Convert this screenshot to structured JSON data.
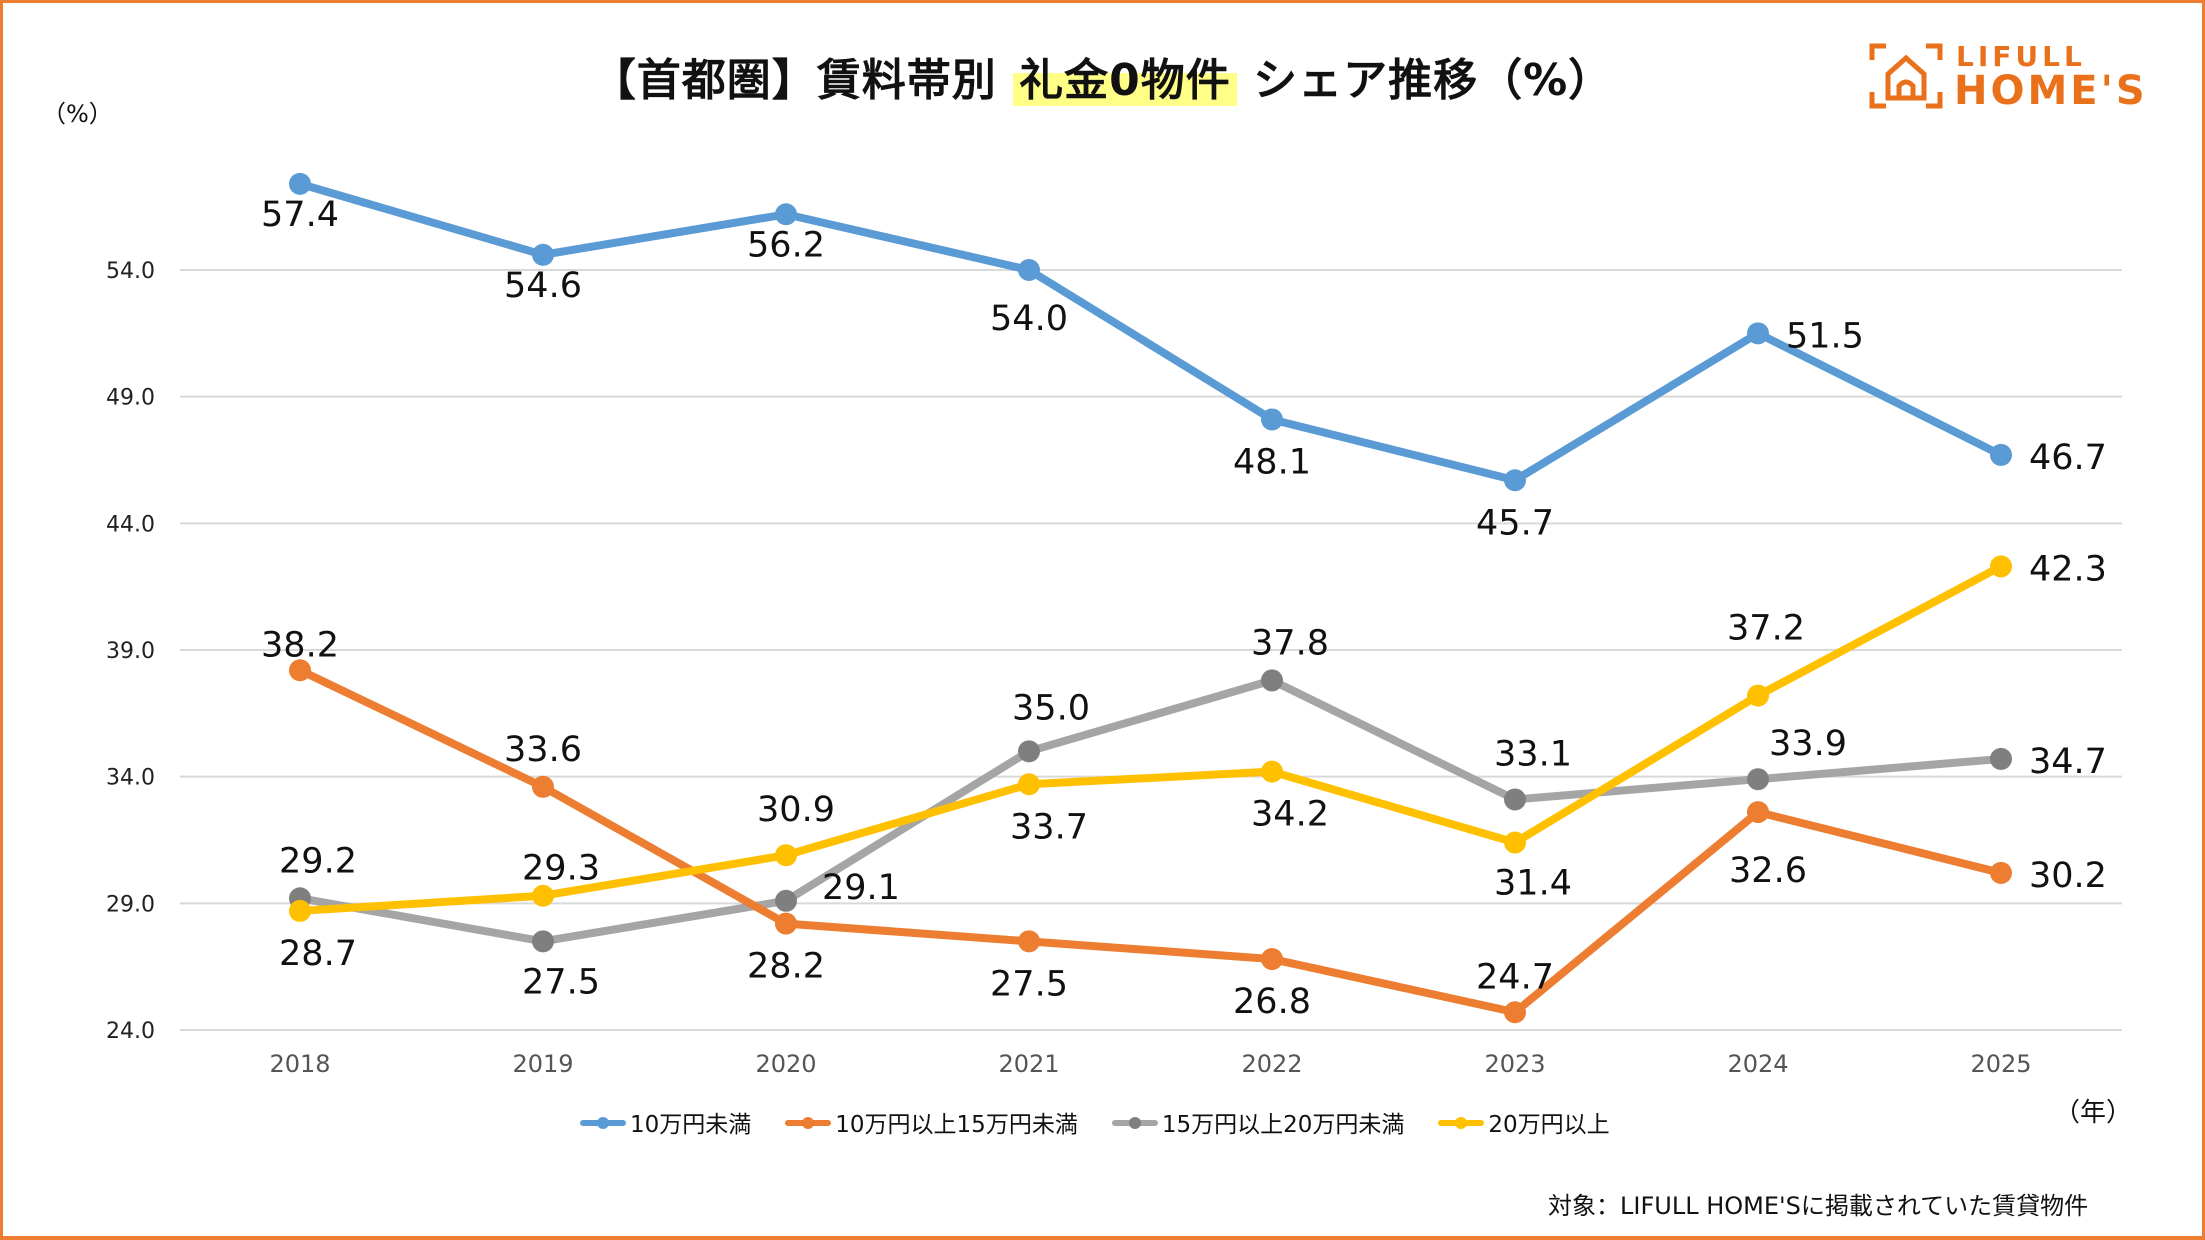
{
  "header": {
    "title_prefix": "【首都圏】賃料帯別 ",
    "title_highlight": "礼金0物件",
    "title_suffix": " シェア推移（%）"
  },
  "logo": {
    "line1": "LIFULL",
    "line2": "HOME'S",
    "color": "#E9711C"
  },
  "frame_color": "#ED7D31",
  "y_unit": "（%）",
  "x_unit": "（年）",
  "footnote": "対象：LIFULL HOME'Sに掲載されていた賃貸物件",
  "chart_data": {
    "type": "line",
    "title": "【首都圏】賃料帯別 礼金0物件 シェア推移（%）",
    "xlabel": "（年）",
    "ylabel": "（%）",
    "categories": [
      "2018",
      "2019",
      "2020",
      "2021",
      "2022",
      "2023",
      "2024",
      "2025"
    ],
    "y_ticks": [
      "24.0",
      "29.0",
      "34.0",
      "39.0",
      "44.0",
      "49.0",
      "54.0"
    ],
    "ylim": [
      24,
      54
    ],
    "grid": true,
    "legend_position": "bottom",
    "series": [
      {
        "name": "10万円未満",
        "color": "#5B9BD5",
        "marker_color": "#5B9BD5",
        "values": [
          57.4,
          54.6,
          56.2,
          54.0,
          48.1,
          45.7,
          51.5,
          46.7
        ],
        "labels": [
          "57.4",
          "54.6",
          "56.2",
          "54.0",
          "48.1",
          "45.7",
          "51.5",
          "46.7"
        ]
      },
      {
        "name": "10万円以上15万円未満",
        "color": "#ED7D31",
        "marker_color": "#ED7D31",
        "values": [
          38.2,
          33.6,
          28.2,
          27.5,
          26.8,
          24.7,
          32.6,
          30.2
        ],
        "labels": [
          "38.2",
          "33.6",
          "28.2",
          "27.5",
          "26.8",
          "24.7",
          "32.6",
          "30.2"
        ]
      },
      {
        "name": "15万円以上20万円未満",
        "color": "#A5A5A5",
        "marker_color": "#7F7F7F",
        "values": [
          29.2,
          27.5,
          29.1,
          35.0,
          37.8,
          33.1,
          33.9,
          34.7
        ],
        "labels": [
          "29.2",
          "27.5",
          "29.1",
          "35.0",
          "37.8",
          "33.1",
          "33.9",
          "34.7"
        ]
      },
      {
        "name": "20万円以上",
        "color": "#FFC000",
        "marker_color": "#FFC000",
        "values": [
          28.7,
          29.3,
          30.9,
          33.7,
          34.2,
          31.4,
          37.2,
          42.3
        ],
        "labels": [
          "28.7",
          "29.3",
          "30.9",
          "33.7",
          "34.2",
          "31.4",
          "37.2",
          "42.3"
        ]
      }
    ]
  }
}
